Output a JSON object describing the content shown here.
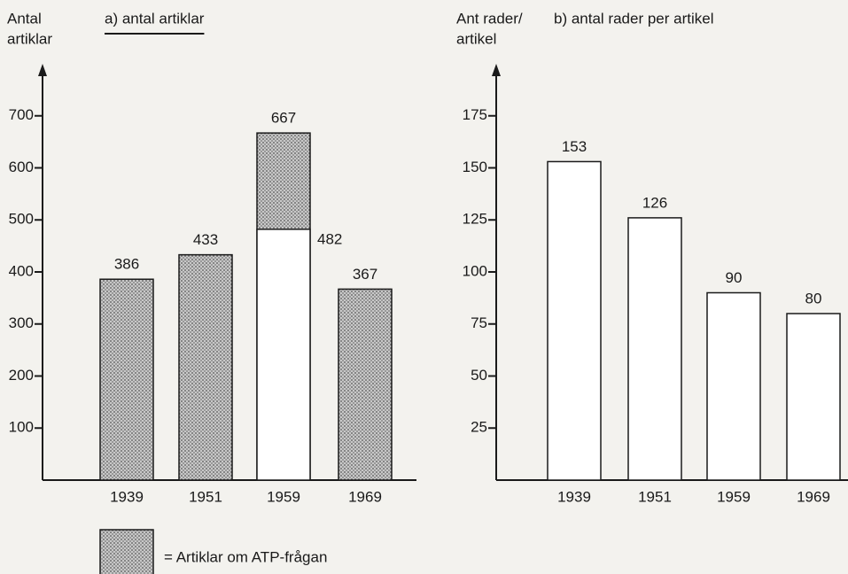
{
  "chart_data": [
    {
      "type": "bar",
      "title": "a) antal artiklar",
      "ylabel": [
        "Antal",
        "artiklar"
      ],
      "categories": [
        "1939",
        "1951",
        "1959",
        "1969"
      ],
      "series": [
        {
          "color": "#9a9a9a",
          "pattern": true,
          "values": [
            386,
            433,
            667,
            367
          ]
        },
        {
          "color": "#ffffff",
          "values": [
            null,
            null,
            482,
            null
          ]
        }
      ],
      "ylim": [
        0,
        800
      ],
      "yticks": [
        100,
        200,
        300,
        400,
        500,
        600,
        700
      ],
      "legend": {
        "label": "= Artiklar om ATP-frågan"
      }
    },
    {
      "type": "bar",
      "title": "b) antal rader per artikel",
      "ylabel": [
        "Ant rader/",
        "artikel"
      ],
      "categories": [
        "1939",
        "1951",
        "1959",
        "1969"
      ],
      "series": [
        {
          "color": "#ffffff",
          "values": [
            153,
            126,
            90,
            80
          ]
        }
      ],
      "ylim": [
        0,
        200
      ],
      "yticks": [
        25,
        50,
        75,
        100,
        125,
        150,
        175
      ]
    }
  ]
}
